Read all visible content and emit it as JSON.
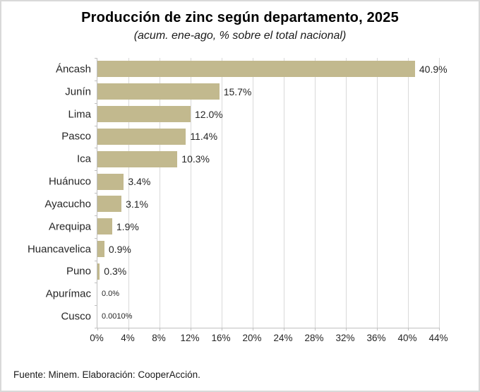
{
  "title": "Producción de zinc según departamento, 2025",
  "subtitle": "(acum. ene-ago, % sobre el total nacional)",
  "source": "Fuente: Minem. Elaboración: CooperAcción.",
  "chart_data": {
    "type": "bar",
    "orientation": "horizontal",
    "title": "Producción de zinc según departamento, 2025",
    "subtitle": "(acum. ene-ago, % sobre el total nacional)",
    "categories": [
      "Áncash",
      "Junín",
      "Lima",
      "Pasco",
      "Ica",
      "Huánuco",
      "Ayacucho",
      "Arequipa",
      "Huancavelica",
      "Puno",
      "Apurímac",
      "Cusco"
    ],
    "values": [
      40.9,
      15.7,
      12.0,
      11.4,
      10.3,
      3.4,
      3.1,
      1.9,
      0.9,
      0.3,
      0.0,
      0.001
    ],
    "value_labels": [
      "40.9%",
      "15.7%",
      "12.0%",
      "11.4%",
      "10.3%",
      "3.4%",
      "3.1%",
      "1.9%",
      "0.9%",
      "0.3%",
      "0.0%",
      "0.0010%"
    ],
    "small_value_label_indices": [
      10,
      11
    ],
    "x_tick_labels": [
      "0%",
      "4%",
      "8%",
      "12%",
      "16%",
      "20%",
      "24%",
      "28%",
      "32%",
      "36%",
      "40%",
      "44%"
    ],
    "x_tick_values": [
      0,
      4,
      8,
      12,
      16,
      20,
      24,
      28,
      32,
      36,
      40,
      44
    ],
    "xlim": [
      0,
      44
    ],
    "xlabel": "",
    "ylabel": "",
    "grid": true,
    "legend": false,
    "bar_color": "#c2b98e",
    "gridline_color": "#d9d9d9",
    "axis_color": "#bfbfbf",
    "text_color": "#262626"
  }
}
